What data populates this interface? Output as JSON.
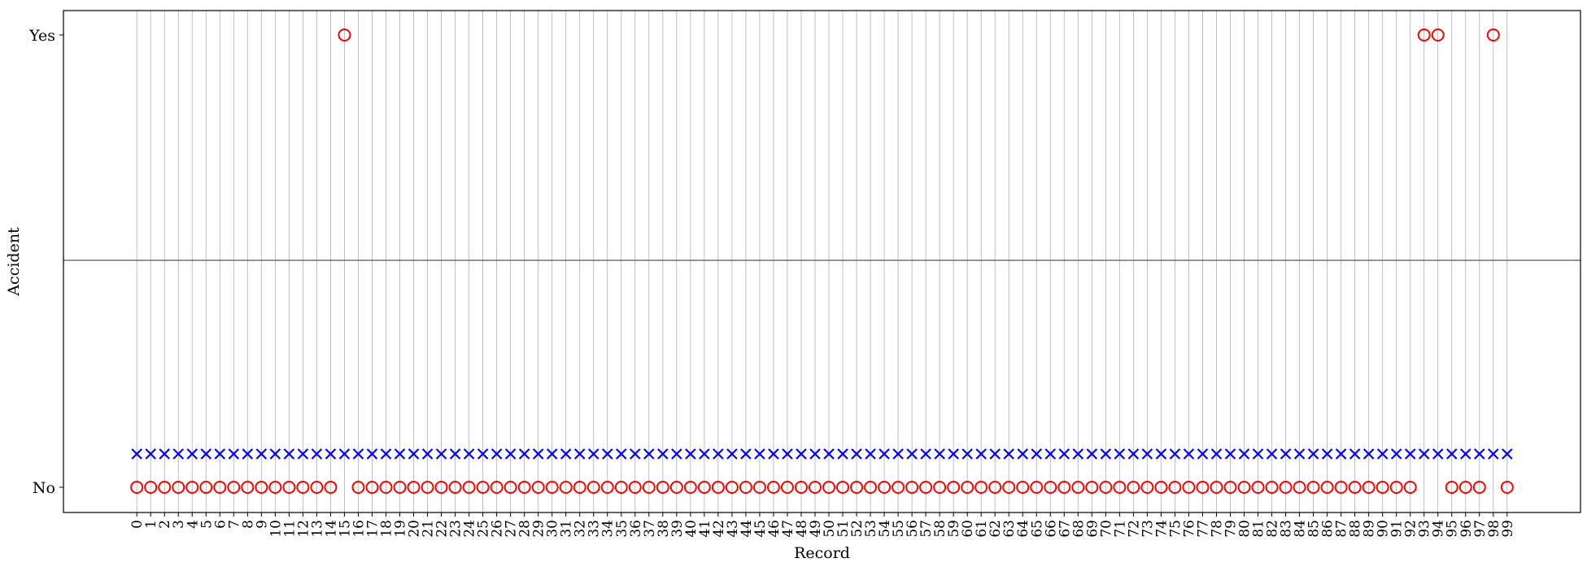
{
  "chart_data": {
    "type": "scatter",
    "title": "",
    "xlabel": "Record",
    "ylabel": "Accident",
    "x": [
      0,
      1,
      2,
      3,
      4,
      5,
      6,
      7,
      8,
      9,
      10,
      11,
      12,
      13,
      14,
      15,
      16,
      17,
      18,
      19,
      20,
      21,
      22,
      23,
      24,
      25,
      26,
      27,
      28,
      29,
      30,
      31,
      32,
      33,
      34,
      35,
      36,
      37,
      38,
      39,
      40,
      41,
      42,
      43,
      44,
      45,
      46,
      47,
      48,
      49,
      50,
      51,
      52,
      53,
      54,
      55,
      56,
      57,
      58,
      59,
      60,
      61,
      62,
      63,
      64,
      65,
      66,
      67,
      68,
      69,
      70,
      71,
      72,
      73,
      74,
      75,
      76,
      77,
      78,
      79,
      80,
      81,
      82,
      83,
      84,
      85,
      86,
      87,
      88,
      89,
      90,
      91,
      92,
      93,
      94,
      95,
      96,
      97,
      98,
      99
    ],
    "xlim": [
      -5.3,
      104.3
    ],
    "yticks": [
      "No",
      "Yes"
    ],
    "grid": "vertical",
    "legend": "none",
    "series": [
      {
        "marker": "circle",
        "color": "#ff0000",
        "yes_records": [
          15,
          93,
          94,
          98
        ]
      },
      {
        "marker": "x",
        "color": "#0000ff",
        "yes_records": []
      }
    ]
  }
}
